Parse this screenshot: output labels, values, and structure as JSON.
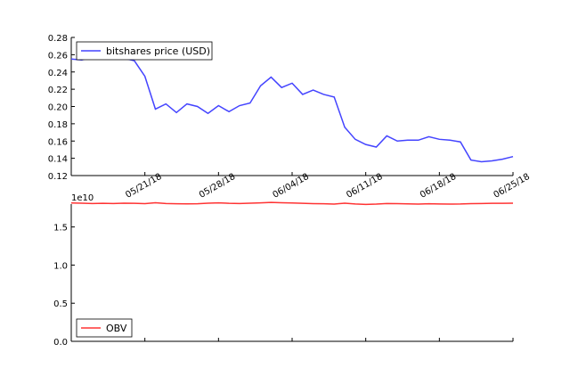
{
  "chart_data": [
    {
      "type": "line",
      "ylim": [
        0.12,
        0.28
      ],
      "yticks": [
        "0.12",
        "0.14",
        "0.16",
        "0.18",
        "0.20",
        "0.22",
        "0.24",
        "0.26",
        "0.28"
      ],
      "xticks": [
        "05/21/18",
        "05/28/18",
        "06/04/18",
        "06/11/18",
        "06/18/18",
        "06/25/18"
      ],
      "grid": false,
      "legend_position": "top-left",
      "series": [
        {
          "name": "bitshares price (USD)",
          "color": "#4444ff",
          "x": [
            "05/14/18",
            "05/15/18",
            "05/16/18",
            "05/17/18",
            "05/18/18",
            "05/19/18",
            "05/20/18",
            "05/21/18",
            "05/22/18",
            "05/23/18",
            "05/24/18",
            "05/25/18",
            "05/26/18",
            "05/27/18",
            "05/28/18",
            "05/29/18",
            "05/30/18",
            "05/31/18",
            "06/01/18",
            "06/02/18",
            "06/03/18",
            "06/04/18",
            "06/05/18",
            "06/06/18",
            "06/07/18",
            "06/08/18",
            "06/09/18",
            "06/10/18",
            "06/11/18",
            "06/12/18",
            "06/13/18",
            "06/14/18",
            "06/15/18",
            "06/16/18",
            "06/17/18",
            "06/18/18",
            "06/19/18",
            "06/20/18",
            "06/21/18",
            "06/22/18",
            "06/23/18",
            "06/24/18",
            "06/25/18"
          ],
          "values": [
            0.255,
            0.254,
            0.257,
            0.258,
            0.257,
            0.256,
            0.253,
            0.235,
            0.197,
            0.203,
            0.193,
            0.203,
            0.2,
            0.192,
            0.201,
            0.194,
            0.201,
            0.204,
            0.224,
            0.234,
            0.222,
            0.227,
            0.214,
            0.219,
            0.214,
            0.211,
            0.176,
            0.162,
            0.156,
            0.153,
            0.166,
            0.16,
            0.161,
            0.161,
            0.165,
            0.162,
            0.161,
            0.159,
            0.138,
            0.136,
            0.137,
            0.139,
            0.142
          ]
        }
      ]
    },
    {
      "type": "line",
      "ylim": [
        0,
        1.8
      ],
      "yticks": [
        "0.0",
        "0.5",
        "1.0",
        "1.5"
      ],
      "offset_label": "1e10",
      "grid": false,
      "legend_position": "bottom-left",
      "series": [
        {
          "name": "OBV",
          "color": "#ff3333",
          "values": [
            1.815,
            1.812,
            1.808,
            1.81,
            1.807,
            1.812,
            1.81,
            1.806,
            1.818,
            1.808,
            1.805,
            1.803,
            1.805,
            1.812,
            1.816,
            1.81,
            1.808,
            1.811,
            1.816,
            1.822,
            1.818,
            1.814,
            1.81,
            1.806,
            1.804,
            1.8,
            1.812,
            1.802,
            1.796,
            1.8,
            1.808,
            1.806,
            1.803,
            1.8,
            1.804,
            1.802,
            1.8,
            1.801,
            1.806,
            1.808,
            1.81,
            1.81,
            1.811
          ]
        }
      ]
    }
  ]
}
